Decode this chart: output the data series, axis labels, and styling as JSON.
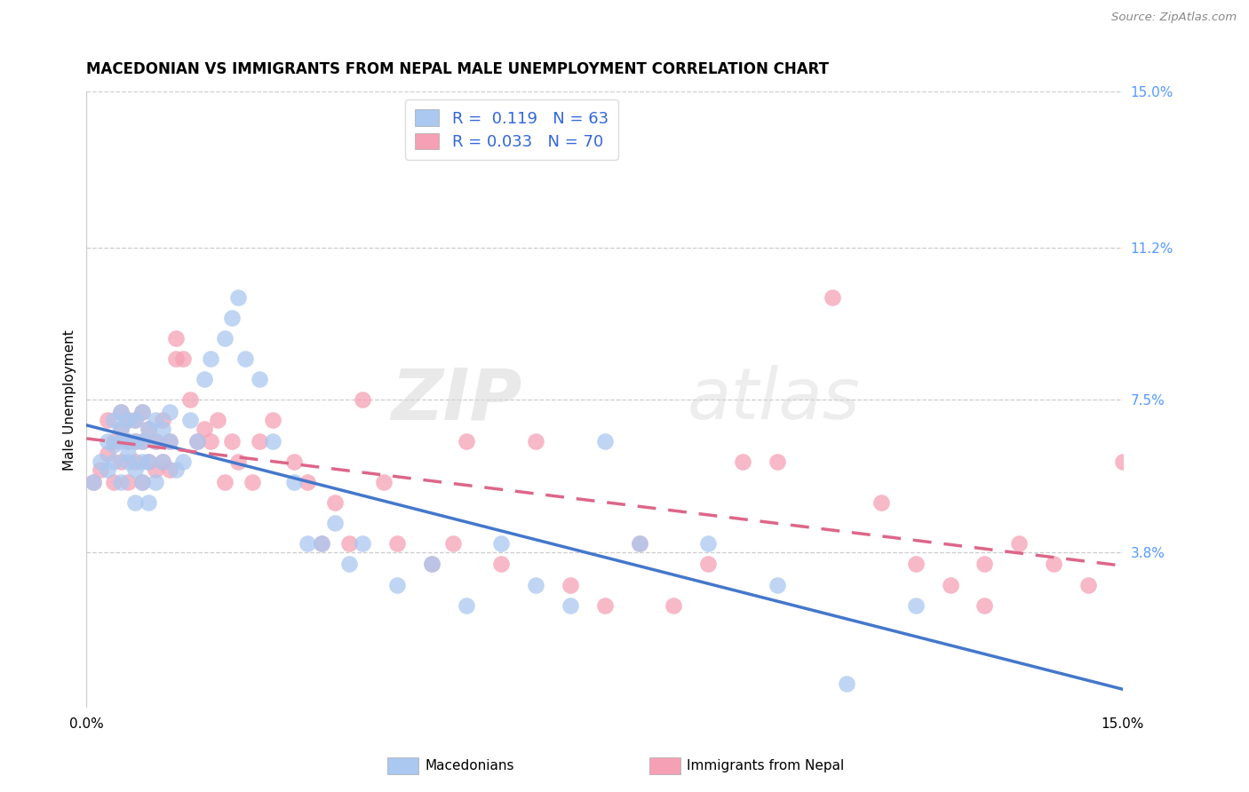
{
  "title": "MACEDONIAN VS IMMIGRANTS FROM NEPAL MALE UNEMPLOYMENT CORRELATION CHART",
  "source": "Source: ZipAtlas.com",
  "ylabel": "Male Unemployment",
  "xlim": [
    0.0,
    0.15
  ],
  "ylim": [
    0.0,
    0.15
  ],
  "x_tick_labels": [
    "0.0%",
    "15.0%"
  ],
  "x_tick_vals": [
    0.0,
    0.15
  ],
  "y_tick_labels_right": [
    "15.0%",
    "11.2%",
    "7.5%",
    "3.8%"
  ],
  "y_tick_values_right": [
    0.15,
    0.112,
    0.075,
    0.038
  ],
  "legend_blue_r": "0.119",
  "legend_blue_n": "63",
  "legend_pink_r": "0.033",
  "legend_pink_n": "70",
  "blue_color": "#aac8f0",
  "pink_color": "#f5a0b5",
  "line_blue_color": "#4477cc",
  "line_pink_color": "#dd6688",
  "watermark_text": "ZIPatlas",
  "mac_x": [
    0.001,
    0.002,
    0.003,
    0.003,
    0.004,
    0.004,
    0.004,
    0.005,
    0.005,
    0.005,
    0.005,
    0.006,
    0.006,
    0.006,
    0.006,
    0.007,
    0.007,
    0.007,
    0.007,
    0.008,
    0.008,
    0.008,
    0.008,
    0.009,
    0.009,
    0.009,
    0.01,
    0.01,
    0.01,
    0.011,
    0.011,
    0.012,
    0.012,
    0.013,
    0.014,
    0.015,
    0.016,
    0.017,
    0.018,
    0.02,
    0.021,
    0.022,
    0.023,
    0.025,
    0.027,
    0.03,
    0.032,
    0.034,
    0.036,
    0.038,
    0.04,
    0.045,
    0.05,
    0.055,
    0.06,
    0.065,
    0.07,
    0.075,
    0.08,
    0.09,
    0.1,
    0.11,
    0.12
  ],
  "mac_y": [
    0.055,
    0.06,
    0.065,
    0.058,
    0.064,
    0.07,
    0.06,
    0.065,
    0.072,
    0.055,
    0.068,
    0.06,
    0.065,
    0.07,
    0.062,
    0.05,
    0.058,
    0.065,
    0.07,
    0.055,
    0.06,
    0.065,
    0.072,
    0.05,
    0.06,
    0.068,
    0.055,
    0.065,
    0.07,
    0.06,
    0.068,
    0.065,
    0.072,
    0.058,
    0.06,
    0.07,
    0.065,
    0.08,
    0.085,
    0.09,
    0.095,
    0.1,
    0.085,
    0.08,
    0.065,
    0.055,
    0.04,
    0.04,
    0.045,
    0.035,
    0.04,
    0.03,
    0.035,
    0.025,
    0.04,
    0.03,
    0.025,
    0.065,
    0.04,
    0.04,
    0.03,
    0.006,
    0.025
  ],
  "nep_x": [
    0.001,
    0.002,
    0.003,
    0.003,
    0.004,
    0.004,
    0.005,
    0.005,
    0.005,
    0.006,
    0.006,
    0.006,
    0.007,
    0.007,
    0.007,
    0.008,
    0.008,
    0.008,
    0.009,
    0.009,
    0.01,
    0.01,
    0.011,
    0.011,
    0.012,
    0.012,
    0.013,
    0.013,
    0.014,
    0.015,
    0.016,
    0.017,
    0.018,
    0.019,
    0.02,
    0.021,
    0.022,
    0.024,
    0.025,
    0.027,
    0.03,
    0.032,
    0.034,
    0.036,
    0.038,
    0.04,
    0.043,
    0.045,
    0.05,
    0.053,
    0.055,
    0.06,
    0.065,
    0.07,
    0.075,
    0.08,
    0.085,
    0.09,
    0.095,
    0.1,
    0.108,
    0.115,
    0.125,
    0.13,
    0.135,
    0.14,
    0.145,
    0.15,
    0.12,
    0.13
  ],
  "nep_y": [
    0.055,
    0.058,
    0.062,
    0.07,
    0.055,
    0.065,
    0.06,
    0.068,
    0.072,
    0.055,
    0.065,
    0.07,
    0.06,
    0.065,
    0.07,
    0.055,
    0.065,
    0.072,
    0.06,
    0.068,
    0.058,
    0.065,
    0.06,
    0.07,
    0.058,
    0.065,
    0.085,
    0.09,
    0.085,
    0.075,
    0.065,
    0.068,
    0.065,
    0.07,
    0.055,
    0.065,
    0.06,
    0.055,
    0.065,
    0.07,
    0.06,
    0.055,
    0.04,
    0.05,
    0.04,
    0.075,
    0.055,
    0.04,
    0.035,
    0.04,
    0.065,
    0.035,
    0.065,
    0.03,
    0.025,
    0.04,
    0.025,
    0.035,
    0.06,
    0.06,
    0.1,
    0.05,
    0.03,
    0.025,
    0.04,
    0.035,
    0.03,
    0.06,
    0.035,
    0.035
  ]
}
